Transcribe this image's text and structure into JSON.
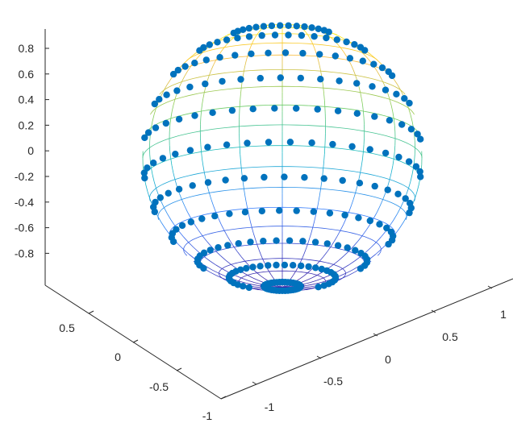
{
  "chart_data": {
    "type": "scatter",
    "title": "",
    "xlabel": "",
    "ylabel": "",
    "zlabel": "",
    "view": "3d",
    "grid": false,
    "legend": "none",
    "surface": {
      "kind": "unit-sphere-mesh",
      "colormap": "parula",
      "color_low": "#3e26a8",
      "color_high": "#f9fb0e",
      "rows": 20,
      "cols": 20
    },
    "series": [
      {
        "marker": "filled-circle",
        "color": "#0072bd",
        "n_rings": 12,
        "points_per_ring": 40
      }
    ],
    "xlim": [
      -1,
      1
    ],
    "ylim": [
      -1,
      1
    ],
    "zlim": [
      -1,
      1
    ],
    "x_ticks": [
      "-1",
      "-0.5",
      "0",
      "0.5",
      "1"
    ],
    "y_ticks": [
      "-1",
      "-0.5",
      "0",
      "0.5"
    ],
    "z_ticks": [
      "0.8",
      "0.6",
      "0.4",
      "0.2",
      "0",
      "-0.2",
      "-0.4",
      "-0.6",
      "-0.8"
    ]
  }
}
